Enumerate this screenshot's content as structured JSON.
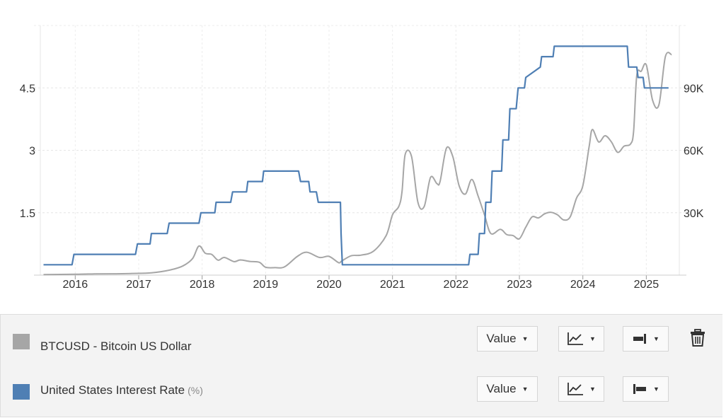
{
  "chart_data": {
    "type": "line",
    "x_ticks": [
      "2016",
      "2017",
      "2018",
      "2019",
      "2020",
      "2021",
      "2022",
      "2023",
      "2024",
      "2025"
    ],
    "y_left_ticks": [
      "1.5",
      "3",
      "4.5"
    ],
    "y_left_tick_values": [
      1.5,
      3,
      4.5
    ],
    "y_left_range": [
      0,
      6
    ],
    "y_right_ticks": [
      "30K",
      "60K",
      "90K"
    ],
    "y_right_tick_values": [
      30000,
      60000,
      90000
    ],
    "y_right_range": [
      0,
      120000
    ],
    "x_range": [
      2015.45,
      2025.52
    ],
    "grid": true,
    "series": [
      {
        "name": "BTCUSD - Bitcoin US Dollar",
        "axis": "right",
        "color": "#a6a6a6",
        "x": [
          2015.5,
          2016.0,
          2016.3,
          2016.6,
          2016.9,
          2017.2,
          2017.5,
          2017.7,
          2017.85,
          2017.95,
          2018.05,
          2018.15,
          2018.25,
          2018.35,
          2018.5,
          2018.6,
          2018.75,
          2018.9,
          2019.0,
          2019.15,
          2019.3,
          2019.5,
          2019.65,
          2019.85,
          2020.0,
          2020.15,
          2020.2,
          2020.35,
          2020.5,
          2020.7,
          2020.9,
          2021.0,
          2021.1,
          2021.15,
          2021.2,
          2021.3,
          2021.4,
          2021.5,
          2021.6,
          2021.7,
          2021.75,
          2021.85,
          2021.95,
          2022.05,
          2022.15,
          2022.25,
          2022.35,
          2022.45,
          2022.55,
          2022.7,
          2022.8,
          2022.9,
          2023.0,
          2023.1,
          2023.2,
          2023.3,
          2023.4,
          2023.5,
          2023.6,
          2023.7,
          2023.8,
          2023.9,
          2024.0,
          2024.1,
          2024.15,
          2024.25,
          2024.35,
          2024.45,
          2024.55,
          2024.65,
          2024.75,
          2024.8,
          2024.85,
          2024.92,
          2025.0,
          2025.1,
          2025.2,
          2025.3,
          2025.4
        ],
        "y": [
          250,
          400,
          600,
          650,
          800,
          1100,
          2500,
          4500,
          8000,
          14000,
          10500,
          10000,
          7200,
          8500,
          6500,
          7300,
          6600,
          6200,
          3800,
          3600,
          4000,
          9000,
          11000,
          8500,
          9000,
          6000,
          6800,
          9300,
          9600,
          11500,
          19000,
          29000,
          33000,
          40000,
          58000,
          57000,
          35000,
          33000,
          47000,
          44000,
          45000,
          61000,
          57000,
          43000,
          39000,
          46000,
          38000,
          29000,
          20000,
          22000,
          19500,
          19000,
          17500,
          23000,
          28000,
          27500,
          29500,
          30200,
          29000,
          26500,
          28000,
          37000,
          43000,
          62000,
          70000,
          64000,
          67000,
          64000,
          59000,
          62000,
          63000,
          69000,
          96000,
          98000,
          101000,
          84000,
          82000,
          105000,
          106000
        ]
      },
      {
        "name": "United States Interest Rate",
        "unit": "(%)",
        "axis": "left",
        "color": "#4f7fb4",
        "x": [
          2015.5,
          2015.95,
          2015.98,
          2016.95,
          2016.98,
          2017.18,
          2017.2,
          2017.45,
          2017.48,
          2017.95,
          2017.98,
          2018.2,
          2018.22,
          2018.45,
          2018.48,
          2018.7,
          2018.72,
          2018.95,
          2018.97,
          2019.52,
          2019.55,
          2019.68,
          2019.7,
          2019.8,
          2019.83,
          2020.18,
          2020.19,
          2020.21,
          2022.2,
          2022.22,
          2022.35,
          2022.37,
          2022.45,
          2022.47,
          2022.55,
          2022.57,
          2022.72,
          2022.74,
          2022.83,
          2022.85,
          2022.95,
          2022.98,
          2023.08,
          2023.1,
          2023.33,
          2023.35,
          2023.53,
          2023.55,
          2024.7,
          2024.72,
          2024.85,
          2024.87,
          2024.95,
          2024.97,
          2025.35
        ],
        "y": [
          0.25,
          0.25,
          0.5,
          0.5,
          0.75,
          0.75,
          1.0,
          1.0,
          1.25,
          1.25,
          1.5,
          1.5,
          1.75,
          1.75,
          2.0,
          2.0,
          2.25,
          2.25,
          2.5,
          2.5,
          2.25,
          2.25,
          2.0,
          2.0,
          1.75,
          1.75,
          1.0,
          0.25,
          0.25,
          0.5,
          0.5,
          1.0,
          1.0,
          1.75,
          1.75,
          2.5,
          2.5,
          3.25,
          3.25,
          4.0,
          4.0,
          4.5,
          4.5,
          4.75,
          5.0,
          5.25,
          5.25,
          5.5,
          5.5,
          5.0,
          5.0,
          4.75,
          4.75,
          4.5,
          4.5
        ]
      }
    ]
  },
  "legend_panel": {
    "rows": [
      {
        "label": "BTCUSD - Bitcoin US Dollar",
        "unit": "",
        "swatch_color": "#a6a6a6",
        "value_button": "Value",
        "chart_type_icon": "line-chart-icon",
        "axis_icon": "axis-right-icon",
        "delete_icon": "trash-icon"
      },
      {
        "label": "United States Interest Rate",
        "unit": "(%)",
        "swatch_color": "#4f7fb4",
        "value_button": "Value",
        "chart_type_icon": "line-chart-icon",
        "axis_icon": "axis-left-icon"
      }
    ]
  }
}
